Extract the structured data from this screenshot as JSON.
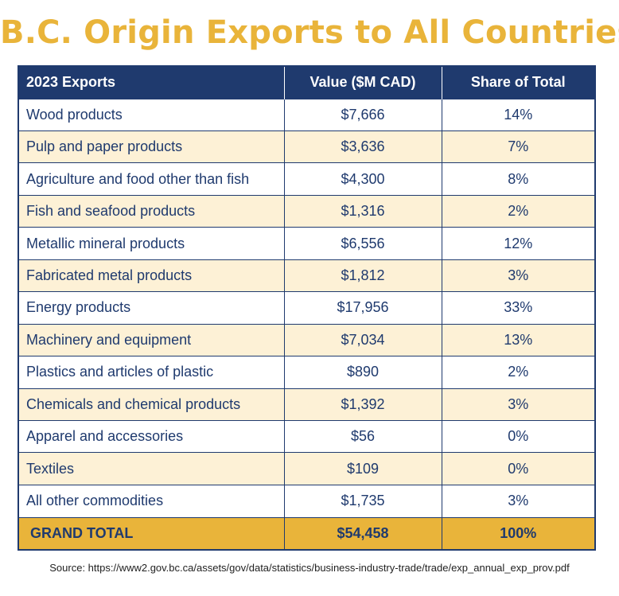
{
  "title": "B.C. Origin Exports to All Countries",
  "colors": {
    "title": "#E9B43A",
    "header_bg": "#1F3A6E",
    "stripe": "#FDF1D6",
    "total_bg": "#E9B43A",
    "text": "#1F3A6E"
  },
  "table": {
    "headers": [
      "2023 Exports",
      "Value ($M CAD)",
      "Share of Total"
    ],
    "rows": [
      {
        "name": "Wood products",
        "value": "$7,666",
        "share": "14%"
      },
      {
        "name": "Pulp and paper products",
        "value": "$3,636",
        "share": "7%"
      },
      {
        "name": "Agriculture and food other than fish",
        "value": "$4,300",
        "share": "8%"
      },
      {
        "name": "Fish and seafood products",
        "value": "$1,316",
        "share": "2%"
      },
      {
        "name": "Metallic mineral products",
        "value": "$6,556",
        "share": "12%"
      },
      {
        "name": "Fabricated metal products",
        "value": "$1,812",
        "share": "3%"
      },
      {
        "name": "Energy products",
        "value": "$17,956",
        "share": "33%"
      },
      {
        "name": "Machinery and equipment",
        "value": "$7,034",
        "share": "13%"
      },
      {
        "name": "Plastics and articles of plastic",
        "value": "$890",
        "share": "2%"
      },
      {
        "name": "Chemicals and chemical products",
        "value": "$1,392",
        "share": "3%"
      },
      {
        "name": "Apparel and accessories",
        "value": "$56",
        "share": "0%"
      },
      {
        "name": "Textiles",
        "value": "$109",
        "share": "0%"
      },
      {
        "name": "All other commodities",
        "value": "$1,735",
        "share": "3%"
      }
    ],
    "total": {
      "name": "GRAND TOTAL",
      "value": "$54,458",
      "share": "100%"
    }
  },
  "source": "Source: https://www2.gov.bc.ca/assets/gov/data/statistics/business-industry-trade/trade/exp_annual_exp_prov.pdf",
  "chart_data": {
    "type": "table",
    "title": "B.C. Origin Exports to All Countries",
    "columns": [
      "2023 Exports",
      "Value ($M CAD)",
      "Share of Total"
    ],
    "categories": [
      "Wood products",
      "Pulp and paper products",
      "Agriculture and food other than fish",
      "Fish and seafood products",
      "Metallic mineral products",
      "Fabricated metal products",
      "Energy products",
      "Machinery and equipment",
      "Plastics and articles of plastic",
      "Chemicals and chemical products",
      "Apparel and accessories",
      "Textiles",
      "All other commodities"
    ],
    "series": [
      {
        "name": "Value ($M CAD)",
        "values": [
          7666,
          3636,
          4300,
          1316,
          6556,
          1812,
          17956,
          7034,
          890,
          1392,
          56,
          109,
          1735
        ]
      },
      {
        "name": "Share of Total",
        "values": [
          14,
          7,
          8,
          2,
          12,
          3,
          33,
          13,
          2,
          3,
          0,
          0,
          3
        ]
      }
    ],
    "total": {
      "name": "GRAND TOTAL",
      "value": 54458,
      "share": 100
    }
  }
}
